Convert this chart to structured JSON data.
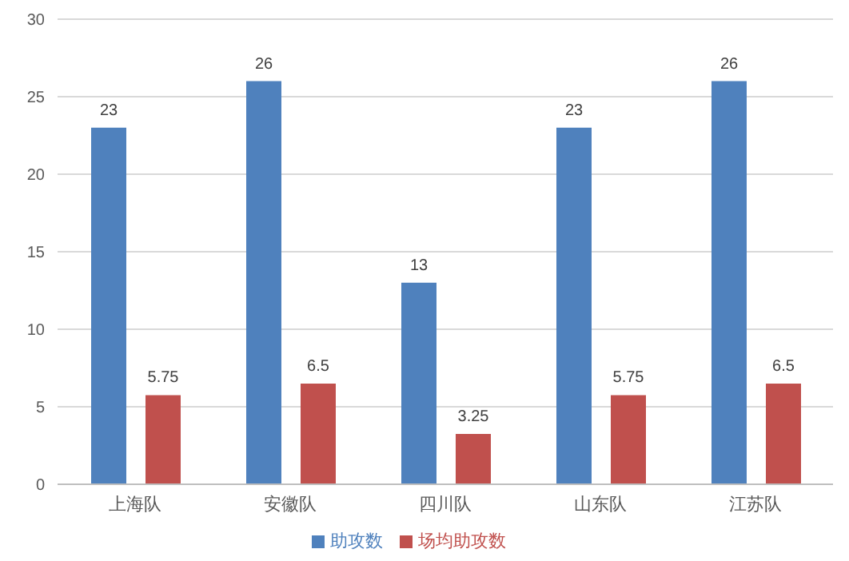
{
  "chart_data": {
    "type": "bar",
    "categories": [
      "上海队",
      "安徽队",
      "四川队",
      "山东队",
      "江苏队"
    ],
    "series": [
      {
        "name": "助攻数",
        "color": "#4f81bd",
        "values": [
          23,
          26,
          13,
          23,
          26
        ]
      },
      {
        "name": "场均助攻数",
        "color": "#c0504d",
        "values": [
          5.75,
          6.5,
          3.25,
          5.75,
          6.5
        ]
      }
    ],
    "ylim": [
      0,
      30
    ],
    "yticks": [
      0,
      5,
      10,
      15,
      20,
      25,
      30
    ],
    "grid": "y",
    "legend": "bottom",
    "data_labels": true
  }
}
